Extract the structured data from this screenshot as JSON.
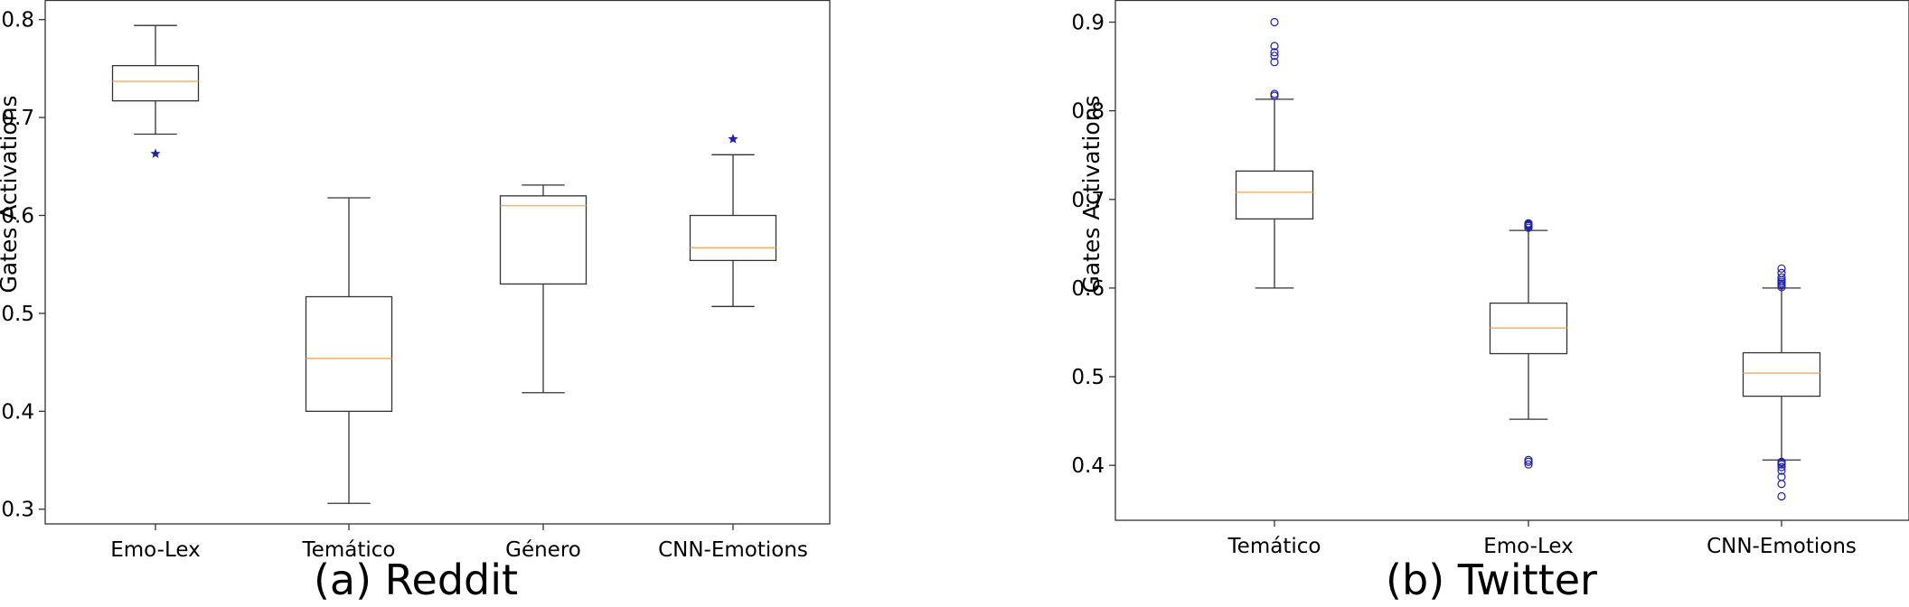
{
  "chart_data": [
    {
      "type": "box",
      "caption": "(a) Reddit",
      "ylabel": "Gates Activations",
      "ylim": [
        0.285,
        0.82
      ],
      "yticks": [
        0.3,
        0.4,
        0.5,
        0.6,
        0.7,
        0.8
      ],
      "categories": [
        "Emo-Lex",
        "Temático",
        "Género",
        "CNN-Emotions"
      ],
      "boxes": [
        {
          "whisker_low": 0.683,
          "q1": 0.717,
          "median": 0.737,
          "q3": 0.753,
          "whisker_high": 0.794,
          "outliers": [
            0.663
          ]
        },
        {
          "whisker_low": 0.306,
          "q1": 0.4,
          "median": 0.454,
          "q3": 0.517,
          "whisker_high": 0.618,
          "outliers": []
        },
        {
          "whisker_low": 0.419,
          "q1": 0.53,
          "median": 0.61,
          "q3": 0.62,
          "whisker_high": 0.631,
          "outliers": []
        },
        {
          "whisker_low": 0.507,
          "q1": 0.554,
          "median": 0.567,
          "q3": 0.6,
          "whisker_high": 0.662,
          "outliers": [
            0.678
          ]
        }
      ],
      "outlier_marker": "star",
      "box_color": "#333333",
      "median_color": "#f5b26b",
      "outlier_color": "#1f1fb4"
    },
    {
      "type": "box",
      "caption": "(b) Twitter",
      "ylabel": "Gates Activations",
      "ylim": [
        0.338,
        0.925
      ],
      "yticks": [
        0.4,
        0.5,
        0.6,
        0.7,
        0.8,
        0.9
      ],
      "categories": [
        "Temático",
        "Emo-Lex",
        "CNN-Emotions"
      ],
      "boxes": [
        {
          "whisker_low": 0.6,
          "q1": 0.678,
          "median": 0.708,
          "q3": 0.732,
          "whisker_high": 0.813,
          "outliers": [
            0.817,
            0.819,
            0.855,
            0.862,
            0.866,
            0.873,
            0.9
          ]
        },
        {
          "whisker_low": 0.452,
          "q1": 0.526,
          "median": 0.555,
          "q3": 0.583,
          "whisker_high": 0.665,
          "outliers": [
            0.401,
            0.404,
            0.406,
            0.668,
            0.67,
            0.671,
            0.672,
            0.673
          ]
        },
        {
          "whisker_low": 0.406,
          "q1": 0.478,
          "median": 0.504,
          "q3": 0.527,
          "whisker_high": 0.6,
          "outliers": [
            0.365,
            0.379,
            0.387,
            0.394,
            0.398,
            0.401,
            0.403,
            0.404,
            0.601,
            0.603,
            0.605,
            0.607,
            0.609,
            0.612,
            0.617,
            0.622
          ]
        }
      ],
      "outlier_marker": "circle",
      "box_color": "#333333",
      "median_color": "#f5b26b",
      "outlier_color": "#1f1fb4"
    }
  ]
}
